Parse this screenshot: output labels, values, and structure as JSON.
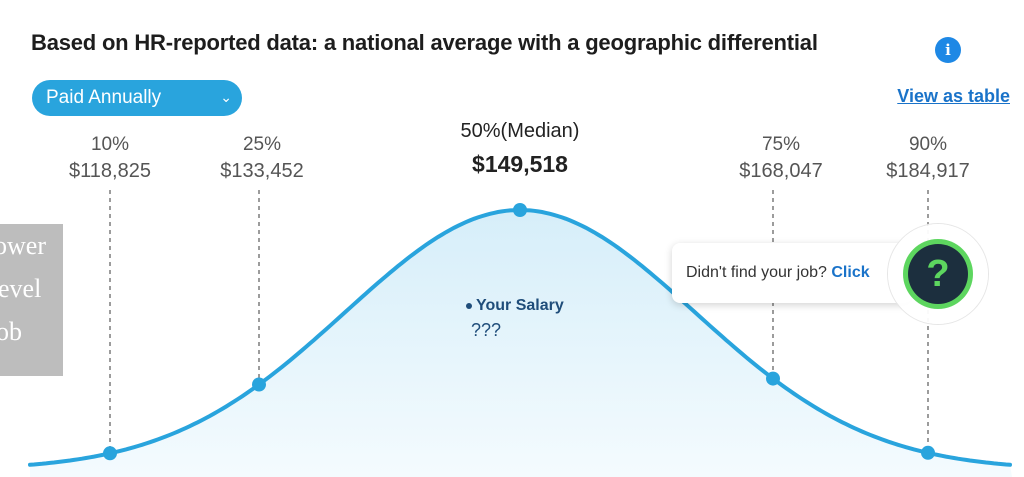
{
  "title": "Based on HR-reported data: a national average with a geographic differential",
  "info_icon": "info-icon",
  "pay_select": {
    "value": "Paid Annually",
    "icon": "chevron-down-icon"
  },
  "view_table_label": "View as table",
  "percentiles": [
    {
      "label": "10%",
      "amount": "$118,825"
    },
    {
      "label": "25%",
      "amount": "$133,452"
    },
    {
      "label": "50%(Median)",
      "amount": "$149,518"
    },
    {
      "label": "75%",
      "amount": "$168,047"
    },
    {
      "label": "90%",
      "amount": "$184,917"
    }
  ],
  "your_salary": {
    "label": "Your Salary",
    "value": "???"
  },
  "side_image_text": [
    "ower",
    "evel",
    "ob"
  ],
  "popup": {
    "text": "Didn't find your job?",
    "link": "Click"
  },
  "help_button": {
    "icon": "question-mark-icon",
    "glyph": "?"
  },
  "colors": {
    "accent": "#29a4dd",
    "curve": "#29a4dd",
    "fill": "#e3f3fb",
    "link": "#1a73c9",
    "help_ring": "#5dd65f"
  },
  "chart_data": {
    "type": "area",
    "title": "Based on HR-reported data: a national average with a geographic differential",
    "x": [
      118825,
      133452,
      149518,
      168047,
      184917
    ],
    "labels": [
      "10%",
      "25%",
      "50%(Median)",
      "75%",
      "90%"
    ],
    "y": [
      10,
      25,
      50,
      75,
      90
    ],
    "markers": [
      "$118,825",
      "$133,452",
      "$149,518",
      "$168,047",
      "$184,917"
    ]
  }
}
